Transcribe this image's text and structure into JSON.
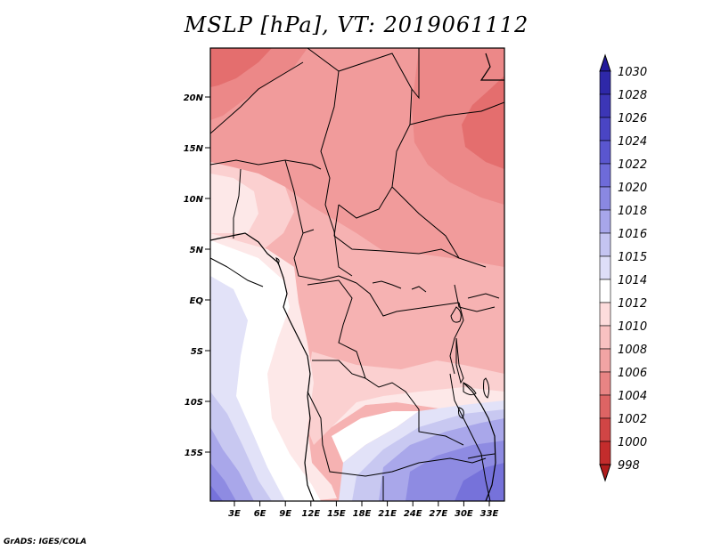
{
  "title": "MSLP [hPa], VT: 2019061112",
  "credit": "GrADS: IGES/COLA",
  "lat_labels": [
    "20N",
    "15N",
    "10N",
    "5N",
    "EQ",
    "5S",
    "10S",
    "15S"
  ],
  "lon_labels": [
    "3E",
    "6E",
    "9E",
    "12E",
    "15E",
    "18E",
    "21E",
    "24E",
    "27E",
    "30E",
    "33E"
  ],
  "colorbar": {
    "labels": [
      "1030",
      "1028",
      "1026",
      "1024",
      "1022",
      "1020",
      "1018",
      "1016",
      "1015",
      "1014",
      "1012",
      "1010",
      "1008",
      "1006",
      "1004",
      "1002",
      "1000",
      "998"
    ],
    "colors": [
      "#231a9a",
      "#2e28a8",
      "#3c36b6",
      "#4a45c4",
      "#5a56cf",
      "#6e6bd9",
      "#8a88e2",
      "#a7a6ea",
      "#c4c4f1",
      "#dedef8",
      "#ffffff",
      "#fddcdc",
      "#f8c1c1",
      "#f1a4a4",
      "#e88484",
      "#dd6464",
      "#d14545",
      "#c32c2c",
      "#b01c1c"
    ]
  },
  "map_colors": {
    "p1004": "#e46e6e",
    "p1006": "#ec8888",
    "p1008": "#f19b9b",
    "p1010": "#f6b2b2",
    "p1012": "#fbd0d0",
    "p1014": "#fde8e8",
    "p1015": "#ffffff",
    "p1016": "#e2e2f8",
    "p1018": "#c8c8f1",
    "p1020": "#a9a7ea",
    "p1022": "#8e8be2",
    "p1024": "#7672da"
  }
}
